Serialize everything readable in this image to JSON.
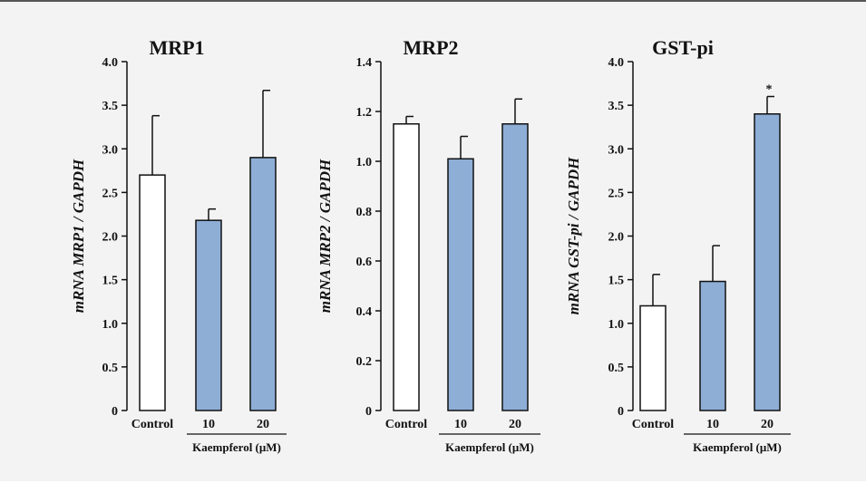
{
  "colors": {
    "bar_fill": "#8eaed6",
    "control_fill": "#ffffff",
    "stroke": "#111111",
    "background": "#f3f3f3"
  },
  "chart_data": [
    {
      "type": "bar",
      "title": "MRP1",
      "ylabel": "mRNA MRP1  / GAPDH",
      "categories": [
        "Control",
        "10",
        "20"
      ],
      "group_label": "Kaempferol (μM)",
      "values": [
        2.7,
        2.18,
        2.9
      ],
      "errors": [
        0.68,
        0.13,
        0.77
      ],
      "significance": [
        "",
        "",
        ""
      ],
      "ylim": [
        0,
        4.0
      ],
      "yticks": [
        "0",
        "0.5",
        "1.0",
        "1.5",
        "2.0",
        "2.5",
        "3.0",
        "3.5",
        "4.0"
      ],
      "grid": false
    },
    {
      "type": "bar",
      "title": "MRP2",
      "ylabel": "mRNA MRP2  / GAPDH",
      "categories": [
        "Control",
        "10",
        "20"
      ],
      "group_label": "Kaempferol (μM)",
      "values": [
        1.15,
        1.01,
        1.15
      ],
      "errors": [
        0.03,
        0.09,
        0.1
      ],
      "significance": [
        "",
        "",
        ""
      ],
      "ylim": [
        0,
        1.4
      ],
      "yticks": [
        "0",
        "0.2",
        "0.4",
        "0.6",
        "0.8",
        "1.0",
        "1.2",
        "1.4"
      ],
      "grid": false
    },
    {
      "type": "bar",
      "title": "GST-pi",
      "ylabel": "mRNA GST-pi / GAPDH",
      "categories": [
        "Control",
        "10",
        "20"
      ],
      "group_label": "Kaempferol (μM)",
      "values": [
        1.2,
        1.48,
        3.4
      ],
      "errors": [
        0.36,
        0.41,
        0.2
      ],
      "significance": [
        "",
        "",
        "*"
      ],
      "ylim": [
        0,
        4.0
      ],
      "yticks": [
        "0",
        "0.5",
        "1.0",
        "1.5",
        "2.0",
        "2.5",
        "3.0",
        "3.5",
        "4.0"
      ],
      "grid": false
    }
  ]
}
